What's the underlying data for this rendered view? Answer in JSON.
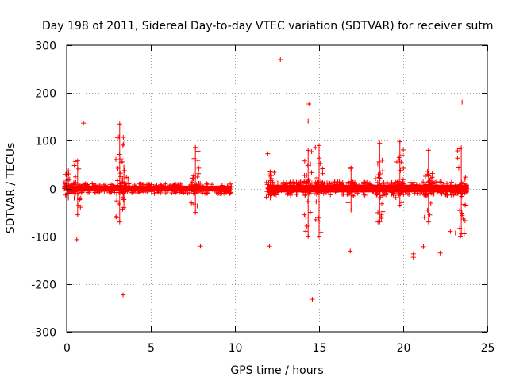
{
  "chart_data": {
    "type": "scatter",
    "marker": "+",
    "title": "Day 198 of 2011, Sidereal Day-to-day VTEC variation (SDTVAR) for receiver sutm",
    "xlabel": "GPS time / hours",
    "ylabel": "SDTVAR / TECUs",
    "xlim": [
      0,
      25
    ],
    "ylim": [
      -300,
      300
    ],
    "xticks": [
      0,
      5,
      10,
      15,
      20,
      25
    ],
    "yticks": [
      -300,
      -200,
      -100,
      0,
      100,
      200,
      300
    ],
    "xtick_labels": [
      "0",
      "5",
      "10",
      "15",
      "20",
      "25"
    ],
    "ytick_labels": [
      "-300",
      "-200",
      "-100",
      "0",
      "100",
      "200",
      "300"
    ],
    "grid": true,
    "series_color": "#ff0000",
    "dense_segments": [
      {
        "x_start": 0.0,
        "x_end": 9.8,
        "y_min": -6,
        "y_max": 6
      },
      {
        "x_start": 11.9,
        "x_end": 23.9,
        "y_min": -8,
        "y_max": 8
      }
    ],
    "spike_clusters": [
      {
        "x": 0.1,
        "y_low": -20,
        "y_high": 37
      },
      {
        "x": 0.65,
        "y_low": -55,
        "y_high": 58
      },
      {
        "x": 3.15,
        "y_low": -70,
        "y_high": 135
      },
      {
        "x": 3.4,
        "y_low": -40,
        "y_high": 45
      },
      {
        "x": 7.65,
        "y_low": -50,
        "y_high": 86
      },
      {
        "x": 12.1,
        "y_low": -20,
        "y_high": 35
      },
      {
        "x": 14.35,
        "y_low": -100,
        "y_high": 80
      },
      {
        "x": 15.0,
        "y_low": -100,
        "y_high": 90
      },
      {
        "x": 16.9,
        "y_low": -45,
        "y_high": 43
      },
      {
        "x": 18.6,
        "y_low": -70,
        "y_high": 95
      },
      {
        "x": 19.8,
        "y_low": -35,
        "y_high": 98
      },
      {
        "x": 21.5,
        "y_low": -70,
        "y_high": 80
      },
      {
        "x": 23.45,
        "y_low": -95,
        "y_high": 85
      }
    ],
    "outliers": [
      {
        "x": 1.0,
        "y": 137
      },
      {
        "x": 0.6,
        "y": -107
      },
      {
        "x": 3.35,
        "y": -223
      },
      {
        "x": 7.95,
        "y": -121
      },
      {
        "x": 12.7,
        "y": 270
      },
      {
        "x": 14.4,
        "y": 177
      },
      {
        "x": 14.35,
        "y": 141
      },
      {
        "x": 14.6,
        "y": -232
      },
      {
        "x": 11.95,
        "y": 73
      },
      {
        "x": 12.05,
        "y": -121
      },
      {
        "x": 16.85,
        "y": -131
      },
      {
        "x": 20.6,
        "y": -137
      },
      {
        "x": 20.6,
        "y": -144
      },
      {
        "x": 21.2,
        "y": -122
      },
      {
        "x": 22.2,
        "y": -135
      },
      {
        "x": 23.5,
        "y": 181
      },
      {
        "x": 22.8,
        "y": -90
      },
      {
        "x": 23.1,
        "y": -93
      },
      {
        "x": 23.4,
        "y": -100
      }
    ]
  }
}
